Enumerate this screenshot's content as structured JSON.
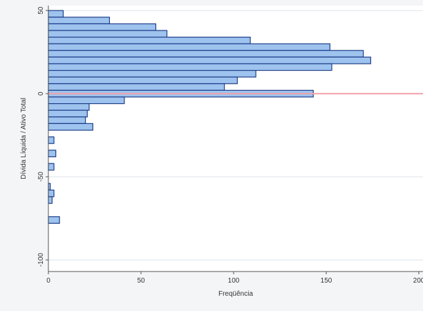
{
  "chart_data": {
    "type": "bar",
    "orientation": "horizontal",
    "title": "",
    "xlabel": "Freqüência",
    "ylabel": "Dívida Líquida / Ativo Total",
    "xlim": [
      0,
      200
    ],
    "ylim": [
      -107,
      53
    ],
    "xticks": [
      0,
      50,
      100,
      150,
      200
    ],
    "xtick_labels": [
      "0",
      "50",
      "100",
      "150",
      "200"
    ],
    "yticks": [
      50,
      0,
      -50,
      -100
    ],
    "ytick_labels": [
      "50",
      "0",
      "-50",
      "-100"
    ],
    "bin_width": 4,
    "bins": [
      {
        "bin_start": 46,
        "value": 8
      },
      {
        "bin_start": 42,
        "value": 33
      },
      {
        "bin_start": 38,
        "value": 58
      },
      {
        "bin_start": 34,
        "value": 64
      },
      {
        "bin_start": 30,
        "value": 109
      },
      {
        "bin_start": 26,
        "value": 152
      },
      {
        "bin_start": 22,
        "value": 170
      },
      {
        "bin_start": 18,
        "value": 174
      },
      {
        "bin_start": 14,
        "value": 153
      },
      {
        "bin_start": 10,
        "value": 112
      },
      {
        "bin_start": 6,
        "value": 102
      },
      {
        "bin_start": 2,
        "value": 95
      },
      {
        "bin_start": -2,
        "value": 143
      },
      {
        "bin_start": -6,
        "value": 41
      },
      {
        "bin_start": -10,
        "value": 22
      },
      {
        "bin_start": -14,
        "value": 21
      },
      {
        "bin_start": -18,
        "value": 20
      },
      {
        "bin_start": -22,
        "value": 24
      },
      {
        "bin_start": -30,
        "value": 3
      },
      {
        "bin_start": -38,
        "value": 4
      },
      {
        "bin_start": -46,
        "value": 3
      },
      {
        "bin_start": -58,
        "value": 1
      },
      {
        "bin_start": -62,
        "value": 3
      },
      {
        "bin_start": -66,
        "value": 2
      },
      {
        "bin_start": -78,
        "value": 6
      }
    ],
    "reference_line": {
      "y": 0,
      "color": "#f4a0a8"
    },
    "colors": {
      "bar_fill": "#9dc3ee",
      "bar_stroke": "#1f3e8a",
      "plot_background": "#ffffff",
      "page_background": "#f3f5f7",
      "gridline": "#dde3ea",
      "axis": "#555555"
    },
    "grid": true,
    "legend": "none"
  }
}
